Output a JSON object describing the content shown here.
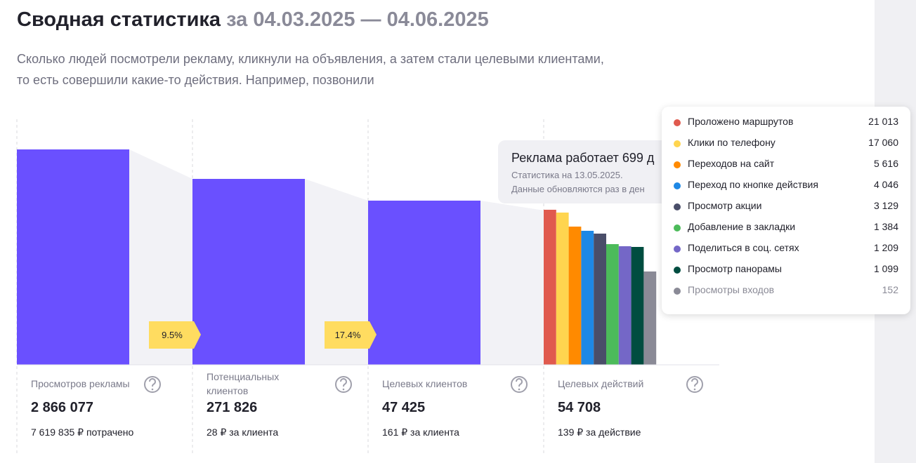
{
  "header": {
    "title": "Сводная статистика",
    "period": "за 04.03.2025 — 04.06.2025"
  },
  "description": [
    "Сколько людей посмотрели рекламу, кликнули на объявления, а затем стали целевыми клиентами,",
    "то есть совершили какие-то действия. Например, позвонили"
  ],
  "funnel": [
    {
      "label": "Просмотров рекламы",
      "value": "2 866 077",
      "note": "7 619 835 ₽ потрачено"
    },
    {
      "label": "Потенциальных клиентов",
      "value": "271 826",
      "note": "28 ₽ за клиента"
    },
    {
      "label": "Целевых клиентов",
      "value": "47 425",
      "note": "161 ₽ за клиента"
    },
    {
      "label": "Целевых действий",
      "value": "54 708",
      "note": "139 ₽ за действие"
    }
  ],
  "conversions": [
    "9.5%",
    "17.4%"
  ],
  "tooltip": {
    "title": "Реклама работает 699 д",
    "lines": [
      "Статистика на 13.05.2025.",
      "Данные обновляются раз в ден"
    ]
  },
  "actions": [
    {
      "label": "Проложено маршрутов",
      "value": "21 013",
      "color": "#e05a4e"
    },
    {
      "label": "Клики по телефону",
      "value": "17 060",
      "color": "#ffd54f"
    },
    {
      "label": "Переходов на сайт",
      "value": "5 616",
      "color": "#ff8a00"
    },
    {
      "label": "Переход по кнопке действия",
      "value": "4 046",
      "color": "#1e88e5"
    },
    {
      "label": "Просмотр акции",
      "value": "3 129",
      "color": "#4a4e69"
    },
    {
      "label": "Добавление в закладки",
      "value": "1 384",
      "color": "#4cbb5a"
    },
    {
      "label": "Поделиться в соц. сетях",
      "value": "1 209",
      "color": "#7467c7"
    },
    {
      "label": "Просмотр панорамы",
      "value": "1 099",
      "color": "#004d40"
    },
    {
      "label": "Просмотры входов",
      "value": "152",
      "color": "#8a8a96"
    }
  ]
}
